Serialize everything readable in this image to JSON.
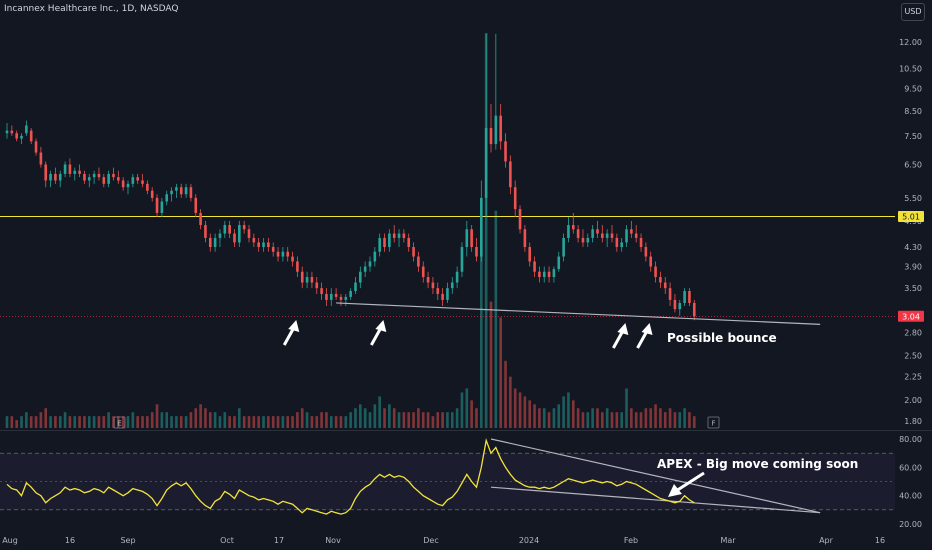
{
  "header": {
    "title": "Incannex Healthcare Inc., 1D, NASDAQ",
    "currency": "USD"
  },
  "colors": {
    "up": "#26a69a",
    "down": "#ef5350",
    "bg": "#131722",
    "resistance": "#f2e33b",
    "trend": "#b2b5be",
    "rsi": "#f2e33b",
    "last": "#f23645"
  },
  "chart_data": {
    "type": "candlestick",
    "price_scale": "log",
    "y_ticks": [
      "12.00",
      "10.50",
      "9.50",
      "8.50",
      "7.50",
      "6.50",
      "5.50",
      "4.90",
      "4.30",
      "3.90",
      "3.50",
      "2.80",
      "2.50",
      "2.25",
      "2.00",
      "1.80"
    ],
    "x_ticks": [
      "Aug",
      "16",
      "Sep",
      "Oct",
      "17",
      "Nov",
      "Dec",
      "2024",
      "Feb",
      "Mar",
      "Apr",
      "16"
    ],
    "resistance_label": "5.01",
    "last_price_label": "3.04",
    "earnings_marker": "E",
    "financials_marker": "F",
    "annotations": {
      "bounce": "Possible bounce",
      "apex": "APEX - Big move coming soon"
    },
    "rsi_ticks": [
      "80.00",
      "60.00",
      "40.00",
      "20.00"
    ],
    "rsi_band": [
      30,
      70
    ],
    "rsi_mid": 50,
    "candles": [
      [
        7.6,
        8.0,
        7.4,
        7.7
      ],
      [
        7.7,
        7.9,
        7.5,
        7.6
      ],
      [
        7.6,
        7.7,
        7.3,
        7.4
      ],
      [
        7.4,
        7.6,
        7.2,
        7.5
      ],
      [
        7.6,
        8.1,
        7.5,
        7.9
      ],
      [
        7.7,
        7.8,
        7.2,
        7.3
      ],
      [
        7.3,
        7.4,
        6.8,
        6.9
      ],
      [
        6.9,
        7.1,
        6.4,
        6.5
      ],
      [
        6.5,
        6.6,
        5.8,
        6.0
      ],
      [
        6.0,
        6.3,
        5.8,
        6.2
      ],
      [
        6.2,
        6.4,
        5.9,
        6.0
      ],
      [
        6.0,
        6.3,
        5.8,
        6.2
      ],
      [
        6.2,
        6.6,
        6.1,
        6.5
      ],
      [
        6.5,
        6.7,
        6.1,
        6.2
      ],
      [
        6.2,
        6.4,
        6.0,
        6.3
      ],
      [
        6.3,
        6.5,
        6.1,
        6.2
      ],
      [
        6.2,
        6.3,
        5.9,
        6.0
      ],
      [
        6.0,
        6.2,
        5.8,
        6.1
      ],
      [
        6.1,
        6.3,
        5.9,
        6.2
      ],
      [
        6.2,
        6.4,
        6.0,
        6.1
      ],
      [
        6.1,
        6.2,
        5.8,
        5.9
      ],
      [
        5.9,
        6.3,
        5.8,
        6.2
      ],
      [
        6.2,
        6.4,
        6.0,
        6.1
      ],
      [
        6.1,
        6.3,
        5.9,
        6.0
      ],
      [
        6.0,
        6.1,
        5.7,
        5.8
      ],
      [
        5.8,
        6.0,
        5.6,
        5.9
      ],
      [
        5.9,
        6.2,
        5.8,
        6.1
      ],
      [
        6.1,
        6.2,
        5.9,
        6.0
      ],
      [
        6.0,
        6.2,
        5.8,
        5.9
      ],
      [
        5.9,
        6.0,
        5.6,
        5.7
      ],
      [
        5.7,
        5.8,
        5.4,
        5.5
      ],
      [
        5.5,
        5.6,
        5.0,
        5.1
      ],
      [
        5.1,
        5.5,
        5.0,
        5.4
      ],
      [
        5.4,
        5.7,
        5.3,
        5.6
      ],
      [
        5.6,
        5.8,
        5.4,
        5.7
      ],
      [
        5.7,
        5.9,
        5.5,
        5.8
      ],
      [
        5.8,
        5.9,
        5.5,
        5.6
      ],
      [
        5.6,
        5.9,
        5.5,
        5.8
      ],
      [
        5.8,
        5.9,
        5.4,
        5.5
      ],
      [
        5.5,
        5.6,
        5.0,
        5.1
      ],
      [
        5.1,
        5.2,
        4.7,
        4.8
      ],
      [
        4.8,
        4.9,
        4.4,
        4.5
      ],
      [
        4.5,
        4.6,
        4.2,
        4.3
      ],
      [
        4.3,
        4.6,
        4.2,
        4.5
      ],
      [
        4.5,
        4.7,
        4.3,
        4.6
      ],
      [
        4.6,
        4.9,
        4.5,
        4.8
      ],
      [
        4.8,
        4.9,
        4.5,
        4.6
      ],
      [
        4.6,
        4.7,
        4.3,
        4.4
      ],
      [
        4.4,
        4.9,
        4.3,
        4.8
      ],
      [
        4.8,
        4.9,
        4.6,
        4.7
      ],
      [
        4.7,
        4.8,
        4.4,
        4.5
      ],
      [
        4.5,
        4.6,
        4.3,
        4.4
      ],
      [
        4.4,
        4.5,
        4.2,
        4.3
      ],
      [
        4.3,
        4.5,
        4.2,
        4.4
      ],
      [
        4.4,
        4.5,
        4.2,
        4.3
      ],
      [
        4.3,
        4.4,
        4.1,
        4.2
      ],
      [
        4.2,
        4.3,
        4.0,
        4.1
      ],
      [
        4.1,
        4.3,
        4.0,
        4.2
      ],
      [
        4.2,
        4.3,
        4.0,
        4.1
      ],
      [
        4.1,
        4.2,
        3.9,
        4.0
      ],
      [
        4.0,
        4.1,
        3.7,
        3.8
      ],
      [
        3.8,
        3.9,
        3.5,
        3.6
      ],
      [
        3.6,
        3.8,
        3.5,
        3.7
      ],
      [
        3.7,
        3.8,
        3.5,
        3.6
      ],
      [
        3.6,
        3.7,
        3.4,
        3.5
      ],
      [
        3.5,
        3.6,
        3.3,
        3.4
      ],
      [
        3.4,
        3.5,
        3.2,
        3.3
      ],
      [
        3.3,
        3.5,
        3.2,
        3.4
      ],
      [
        3.4,
        3.5,
        3.3,
        3.35
      ],
      [
        3.35,
        3.4,
        3.2,
        3.3
      ],
      [
        3.3,
        3.4,
        3.2,
        3.35
      ],
      [
        3.35,
        3.5,
        3.3,
        3.45
      ],
      [
        3.45,
        3.7,
        3.4,
        3.6
      ],
      [
        3.6,
        3.9,
        3.5,
        3.8
      ],
      [
        3.8,
        4.0,
        3.7,
        3.9
      ],
      [
        3.9,
        4.1,
        3.8,
        4.0
      ],
      [
        4.0,
        4.3,
        3.9,
        4.2
      ],
      [
        4.2,
        4.6,
        4.1,
        4.5
      ],
      [
        4.5,
        4.6,
        4.2,
        4.3
      ],
      [
        4.3,
        4.7,
        4.2,
        4.6
      ],
      [
        4.6,
        4.8,
        4.4,
        4.5
      ],
      [
        4.5,
        4.7,
        4.3,
        4.6
      ],
      [
        4.6,
        4.7,
        4.4,
        4.5
      ],
      [
        4.5,
        4.6,
        4.2,
        4.3
      ],
      [
        4.3,
        4.4,
        4.0,
        4.1
      ],
      [
        4.1,
        4.2,
        3.8,
        3.9
      ],
      [
        3.9,
        4.0,
        3.6,
        3.7
      ],
      [
        3.7,
        3.8,
        3.5,
        3.6
      ],
      [
        3.6,
        3.7,
        3.4,
        3.5
      ],
      [
        3.5,
        3.6,
        3.3,
        3.4
      ],
      [
        3.4,
        3.5,
        3.2,
        3.3
      ],
      [
        3.3,
        3.6,
        3.25,
        3.5
      ],
      [
        3.5,
        3.7,
        3.4,
        3.6
      ],
      [
        3.6,
        3.9,
        3.5,
        3.8
      ],
      [
        3.8,
        4.4,
        3.7,
        4.3
      ],
      [
        4.3,
        4.9,
        4.1,
        4.7
      ],
      [
        4.7,
        4.8,
        4.2,
        4.3
      ],
      [
        4.3,
        4.5,
        4.0,
        4.1
      ],
      [
        4.1,
        6.0,
        4.0,
        5.5
      ],
      [
        5.5,
        12.5,
        5.0,
        7.8
      ],
      [
        7.8,
        8.8,
        6.9,
        7.2
      ],
      [
        7.2,
        12.5,
        7.0,
        8.3
      ],
      [
        8.3,
        8.8,
        7.0,
        7.3
      ],
      [
        7.3,
        7.6,
        6.4,
        6.6
      ],
      [
        6.6,
        6.8,
        5.6,
        5.8
      ],
      [
        5.8,
        6.0,
        5.0,
        5.2
      ],
      [
        5.2,
        5.3,
        4.6,
        4.7
      ],
      [
        4.7,
        4.8,
        4.2,
        4.3
      ],
      [
        4.3,
        4.4,
        3.9,
        4.0
      ],
      [
        4.0,
        4.1,
        3.7,
        3.8
      ],
      [
        3.8,
        3.9,
        3.6,
        3.7
      ],
      [
        3.7,
        3.9,
        3.6,
        3.8
      ],
      [
        3.8,
        3.9,
        3.6,
        3.7
      ],
      [
        3.7,
        3.9,
        3.6,
        3.85
      ],
      [
        3.85,
        4.2,
        3.8,
        4.1
      ],
      [
        4.1,
        4.6,
        4.0,
        4.5
      ],
      [
        4.5,
        5.0,
        4.4,
        4.8
      ],
      [
        4.8,
        5.1,
        4.6,
        4.7
      ],
      [
        4.7,
        4.8,
        4.4,
        4.5
      ],
      [
        4.5,
        4.7,
        4.3,
        4.4
      ],
      [
        4.4,
        4.6,
        4.3,
        4.5
      ],
      [
        4.5,
        4.8,
        4.4,
        4.7
      ],
      [
        4.7,
        4.9,
        4.5,
        4.6
      ],
      [
        4.6,
        4.8,
        4.4,
        4.5
      ],
      [
        4.5,
        4.7,
        4.3,
        4.6
      ],
      [
        4.6,
        4.8,
        4.4,
        4.5
      ],
      [
        4.5,
        4.6,
        4.2,
        4.3
      ],
      [
        4.3,
        4.5,
        4.2,
        4.4
      ],
      [
        4.4,
        4.8,
        4.3,
        4.7
      ],
      [
        4.7,
        4.9,
        4.5,
        4.6
      ],
      [
        4.6,
        4.8,
        4.4,
        4.5
      ],
      [
        4.5,
        4.6,
        4.2,
        4.3
      ],
      [
        4.3,
        4.4,
        4.0,
        4.1
      ],
      [
        4.1,
        4.2,
        3.8,
        3.9
      ],
      [
        3.9,
        4.0,
        3.6,
        3.7
      ],
      [
        3.7,
        3.8,
        3.5,
        3.6
      ],
      [
        3.6,
        3.7,
        3.4,
        3.5
      ],
      [
        3.5,
        3.6,
        3.2,
        3.3
      ],
      [
        3.3,
        3.4,
        3.1,
        3.15
      ],
      [
        3.15,
        3.3,
        3.05,
        3.25
      ],
      [
        3.25,
        3.5,
        3.2,
        3.45
      ],
      [
        3.45,
        3.5,
        3.2,
        3.25
      ],
      [
        3.25,
        3.3,
        2.98,
        3.04
      ]
    ],
    "volume": [
      0.03,
      0.03,
      0.02,
      0.03,
      0.04,
      0.03,
      0.03,
      0.04,
      0.05,
      0.03,
      0.03,
      0.03,
      0.04,
      0.03,
      0.03,
      0.03,
      0.03,
      0.03,
      0.03,
      0.03,
      0.03,
      0.04,
      0.03,
      0.03,
      0.03,
      0.03,
      0.04,
      0.03,
      0.03,
      0.03,
      0.04,
      0.06,
      0.04,
      0.04,
      0.03,
      0.03,
      0.03,
      0.03,
      0.04,
      0.05,
      0.06,
      0.05,
      0.04,
      0.04,
      0.03,
      0.04,
      0.03,
      0.03,
      0.05,
      0.03,
      0.03,
      0.03,
      0.03,
      0.03,
      0.03,
      0.03,
      0.03,
      0.03,
      0.03,
      0.03,
      0.04,
      0.05,
      0.04,
      0.03,
      0.03,
      0.04,
      0.04,
      0.03,
      0.03,
      0.03,
      0.03,
      0.04,
      0.05,
      0.06,
      0.05,
      0.04,
      0.06,
      0.08,
      0.05,
      0.06,
      0.05,
      0.04,
      0.04,
      0.04,
      0.04,
      0.05,
      0.04,
      0.04,
      0.03,
      0.04,
      0.04,
      0.04,
      0.04,
      0.05,
      0.09,
      0.1,
      0.07,
      0.05,
      0.45,
      1.0,
      0.32,
      0.55,
      0.28,
      0.17,
      0.13,
      0.1,
      0.09,
      0.08,
      0.07,
      0.06,
      0.05,
      0.05,
      0.04,
      0.05,
      0.06,
      0.08,
      0.09,
      0.07,
      0.05,
      0.04,
      0.04,
      0.05,
      0.05,
      0.04,
      0.05,
      0.04,
      0.04,
      0.04,
      0.1,
      0.05,
      0.04,
      0.04,
      0.05,
      0.05,
      0.06,
      0.05,
      0.04,
      0.05,
      0.04,
      0.04,
      0.05,
      0.04,
      0.03
    ],
    "rsi": [
      48,
      45,
      44,
      40,
      49,
      46,
      42,
      40,
      35,
      38,
      40,
      42,
      46,
      44,
      45,
      44,
      42,
      43,
      45,
      44,
      42,
      46,
      44,
      42,
      40,
      42,
      45,
      44,
      43,
      41,
      38,
      33,
      38,
      44,
      47,
      49,
      47,
      49,
      45,
      40,
      36,
      33,
      31,
      36,
      38,
      43,
      41,
      38,
      44,
      42,
      40,
      39,
      37,
      38,
      37,
      36,
      34,
      36,
      35,
      34,
      31,
      28,
      31,
      30,
      29,
      28,
      27,
      29,
      28,
      27,
      28,
      31,
      38,
      43,
      46,
      48,
      52,
      55,
      53,
      55,
      53,
      54,
      53,
      50,
      46,
      43,
      40,
      38,
      36,
      34,
      33,
      37,
      39,
      43,
      49,
      55,
      50,
      46,
      60,
      79,
      70,
      74,
      66,
      60,
      55,
      51,
      49,
      47,
      46,
      46,
      45,
      46,
      45,
      46,
      48,
      50,
      52,
      51,
      50,
      49,
      50,
      51,
      50,
      49,
      50,
      49,
      47,
      48,
      50,
      49,
      48,
      46,
      44,
      42,
      40,
      38,
      37,
      36,
      35,
      36,
      40,
      37,
      35
    ],
    "resistance_value": 5.01,
    "trendline": {
      "from": [
        68,
        3.25
      ],
      "to": [
        168,
        2.92
      ]
    },
    "rsi_trend_upper": {
      "from": [
        100,
        80
      ],
      "to": [
        168,
        28
      ]
    },
    "rsi_trend_lower": {
      "from": [
        100,
        46
      ],
      "to": [
        168,
        28
      ]
    }
  }
}
